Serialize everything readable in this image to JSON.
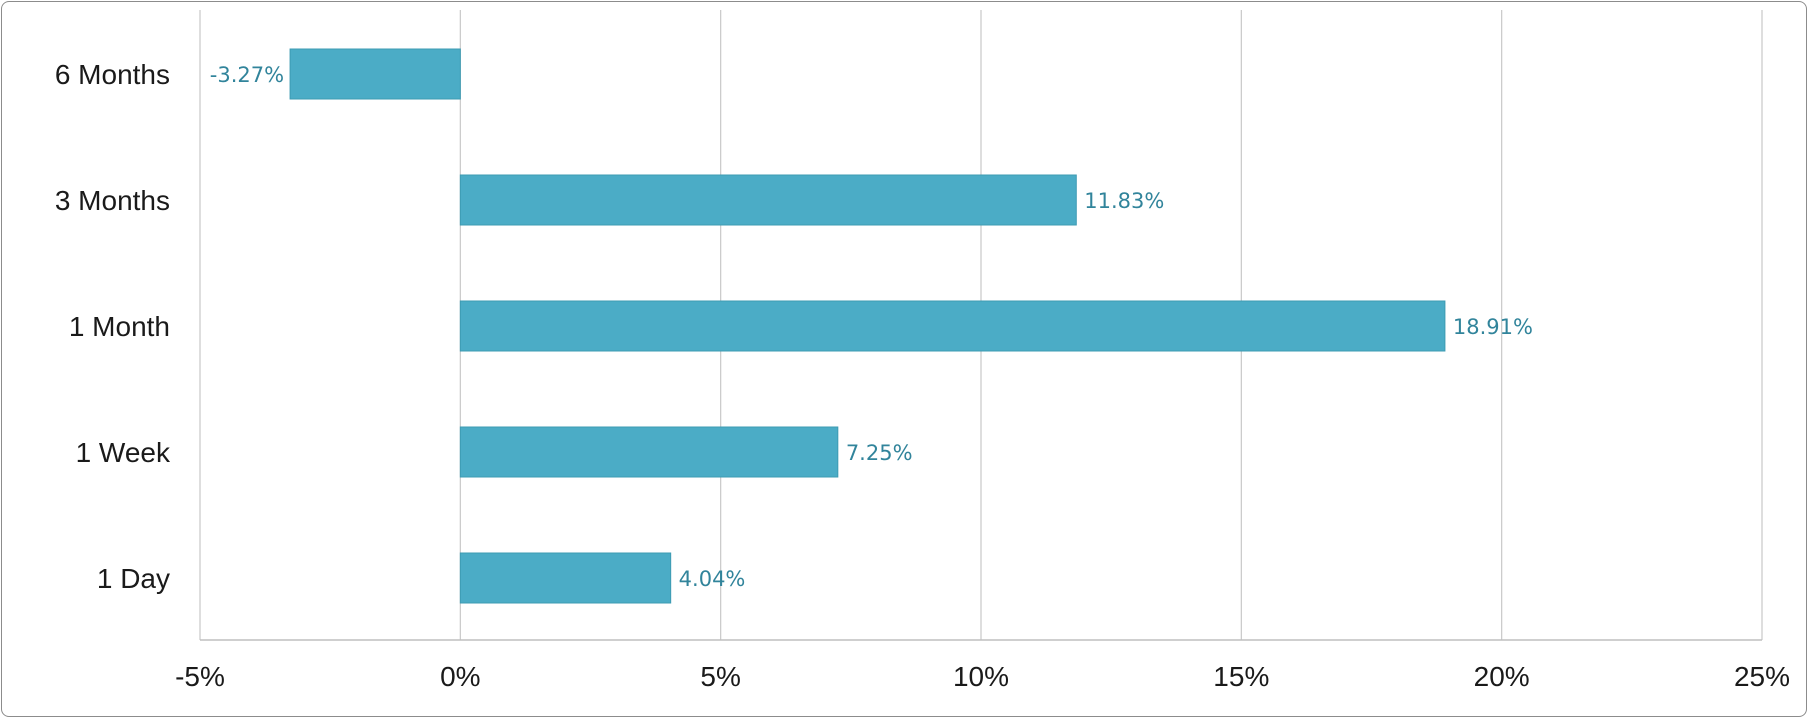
{
  "chart_data": {
    "type": "bar",
    "orientation": "horizontal",
    "categories": [
      "6 Months",
      "3 Months",
      "1 Month",
      "1 Week",
      "1 Day"
    ],
    "values": [
      -3.27,
      11.83,
      18.91,
      7.25,
      4.04
    ],
    "data_labels": [
      "-3.27%",
      "11.83%",
      "18.91%",
      "7.25%",
      "4.04%"
    ],
    "xlim": [
      -5,
      25
    ],
    "x_ticks": [
      -5,
      0,
      5,
      10,
      15,
      20,
      25
    ],
    "x_tick_labels": [
      "-5%",
      "0%",
      "5%",
      "10%",
      "15%",
      "20%",
      "25%"
    ],
    "grid": "vertical",
    "legend": "none",
    "colors": {
      "bar": "#4bacc6",
      "bar_stroke": "#3d9bb3",
      "data_label": "#31849b",
      "gridline": "#c8c8c8",
      "axis": "#bfbfbf"
    }
  }
}
